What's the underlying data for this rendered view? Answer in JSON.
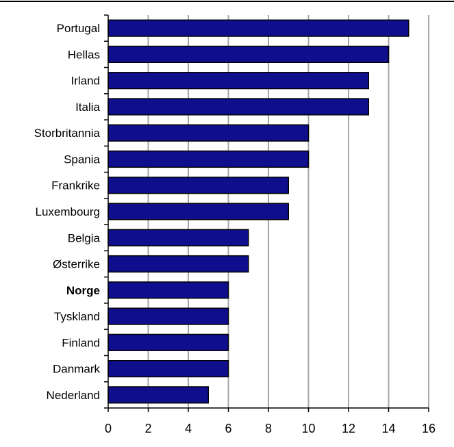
{
  "chart_data": {
    "type": "bar",
    "orientation": "horizontal",
    "categories": [
      "Portugal",
      "Hellas",
      "Irland",
      "Italia",
      "Storbritannia",
      "Spania",
      "Frankrike",
      "Luxembourg",
      "Belgia",
      "Østerrike",
      "Norge",
      "Tyskland",
      "Finland",
      "Danmark",
      "Nederland"
    ],
    "values": [
      15,
      14,
      13,
      13,
      10,
      10,
      9,
      9,
      7,
      7,
      6,
      6,
      6,
      6,
      5
    ],
    "highlighted_category": "Norge",
    "xlim": [
      0,
      16
    ],
    "xticks": [
      "0",
      "2",
      "4",
      "6",
      "8",
      "10",
      "12",
      "14",
      "16"
    ],
    "grid": true,
    "title": "",
    "xlabel": "",
    "ylabel": "",
    "colors": {
      "bar_fill": "#0f0f8e",
      "bar_edge": "#000000",
      "grid": "#a6a6a6",
      "axis": "#000000",
      "top_rule": "#000000"
    }
  }
}
